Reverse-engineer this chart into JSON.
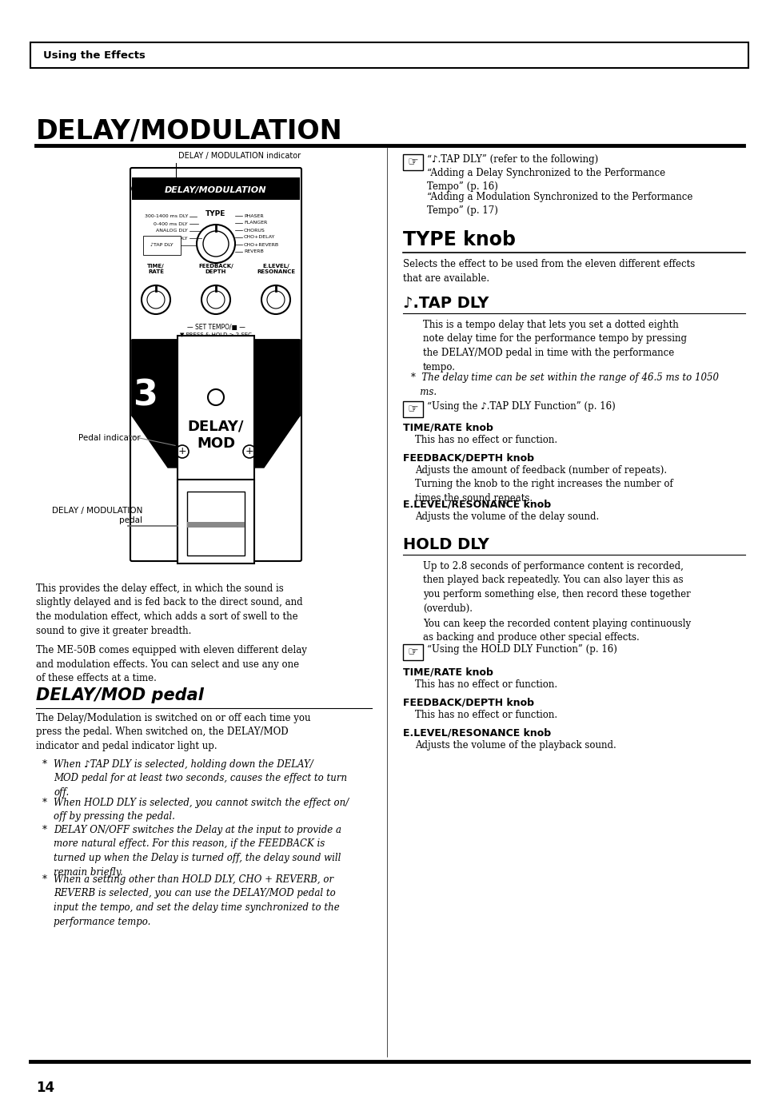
{
  "page_bg": "#ffffff",
  "header_text": "Using the Effects",
  "title": "DELAY/MODULATION",
  "section1_title": "DELAY/MOD pedal",
  "section1_body": "The Delay/Modulation is switched on or off each time you\npress the pedal. When switched on, the DELAY/MOD\nindicator and pedal indicator light up.",
  "section1_bullets": [
    "When ♪TAP DLY is selected, holding down the DELAY/\nMOD pedal for at least two seconds, causes the effect to turn\noff.",
    "When HOLD DLY is selected, you cannot switch the effect on/\noff by pressing the pedal.",
    "DELAY ON/OFF switches the Delay at the input to provide a\nmore natural effect. For this reason, if the FEEDBACK is\nturned up when the Delay is turned off, the delay sound will\nremain briefly.",
    "When a setting other than HOLD DLY, CHO + REVERB, or\nREVERB is selected, you can use the DELAY/MOD pedal to\ninput the tempo, and set the delay time synchronized to the\nperformance tempo."
  ],
  "para1": "This provides the delay effect, in which the sound is\nslightly delayed and is fed back to the direct sound, and\nthe modulation effect, which adds a sort of swell to the\nsound to give it greater breadth.",
  "para2": "The ME-50B comes equipped with eleven different delay\nand modulation effects. You can select and use any one\nof these effects at a time.",
  "type_knob_title": "TYPE knob",
  "type_knob_body": "Selects the effect to be used from the eleven different effects\nthat are available.",
  "tap_dly_title": "♪.TAP DLY",
  "tap_dly_body": "This is a tempo delay that lets you set a dotted eighth\nnote delay time for the performance tempo by pressing\nthe DELAY/MOD pedal in time with the performance\ntempo.",
  "tap_dly_note": "*  The delay time can be set within the range of 46.5 ms to 1050\n   ms.",
  "tap_dly_ref": "“Using the ♪.TAP DLY Function” (p. 16)",
  "time_rate_knob_title": "TIME/RATE knob",
  "time_rate_knob_body": "This has no effect or function.",
  "feedback_depth_title": "FEEDBACK/DEPTH knob",
  "feedback_depth_body": "Adjusts the amount of feedback (number of repeats).\nTurning the knob to the right increases the number of\ntimes the sound repeats.",
  "elevel_resonance_title": "E.LEVEL/RESONANCE knob",
  "elevel_resonance_body": "Adjusts the volume of the delay sound.",
  "hold_dly_title": "HOLD DLY",
  "hold_dly_body1": "Up to 2.8 seconds of performance content is recorded,\nthen played back repeatedly. You can also layer this as\nyou perform something else, then record these together\n(overdub).",
  "hold_dly_body2": "You can keep the recorded content playing continuously\nas backing and produce other special effects.",
  "hold_dly_ref": "“Using the HOLD DLY Function” (p. 16)",
  "hold_time_rate_title": "TIME/RATE knob",
  "hold_time_rate_body": "This has no effect or function.",
  "hold_feedback_depth_title": "FEEDBACK/DEPTH knob",
  "hold_feedback_depth_body": "This has no effect or function.",
  "hold_elevel_resonance_title": "E.LEVEL/RESONANCE knob",
  "hold_elevel_resonance_body": "Adjusts the volume of the playback sound.",
  "page_number": "14",
  "right_col_note1": "“♪.TAP DLY” (refer to the following)",
  "right_col_note2": "“Adding a Delay Synchronized to the Performance\nTempo” (p. 16)",
  "right_col_note3": "“Adding a Modulation Synchronized to the Performance\nTempo” (p. 17)"
}
